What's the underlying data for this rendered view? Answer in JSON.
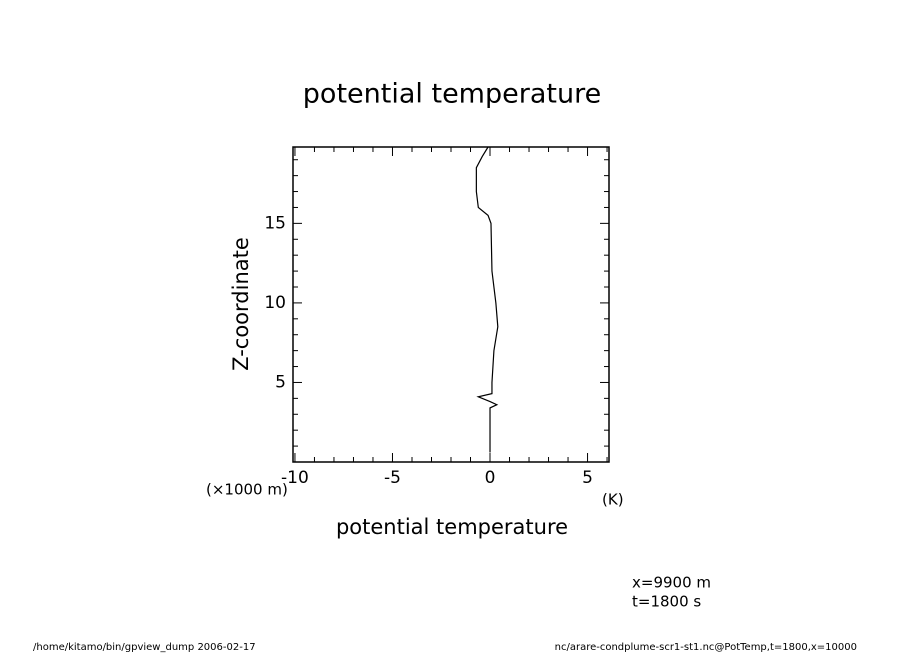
{
  "chart_data": {
    "type": "line",
    "title": "potential temperature",
    "xlabel": "potential temperature",
    "ylabel": "Z-coordinate",
    "yunit": "(×1000 m)",
    "xunit": "(K)",
    "annotations": [
      "x=9900 m",
      "t=1800 s"
    ],
    "footer_left": "/home/kitamo/bin/gpview_dump  2006-02-17",
    "footer_right": "nc/arare-condplume-scr1-st1.nc@PotTemp,t=1800,x=10000",
    "color": "#000000",
    "x": [
      0.0,
      0.0,
      0.35,
      0.0,
      -0.6,
      0.1,
      0.1,
      0.2,
      0.4,
      0.3,
      0.1,
      0.05,
      -0.1,
      -0.6,
      -0.7,
      -0.7,
      -0.4,
      -0.1
    ],
    "values": [
      0.6,
      3.4,
      3.6,
      3.8,
      4.1,
      4.3,
      5,
      7,
      8.5,
      10,
      12,
      15,
      15.5,
      16,
      17,
      18.5,
      19.2,
      19.8
    ],
    "xlim": [
      -10.1,
      6.1
    ],
    "ylim": [
      0,
      19.8
    ],
    "xticks": [
      -10,
      -5,
      0,
      5
    ],
    "yticks": [
      5,
      10,
      15
    ],
    "xminorticks": [
      -9,
      -8,
      -7,
      -6,
      -4,
      -3,
      -2,
      -1,
      1,
      2,
      3,
      4,
      6
    ],
    "yminorticks": [
      1,
      2,
      3,
      4,
      6,
      7,
      8,
      9,
      11,
      12,
      13,
      14,
      16,
      17,
      18,
      19
    ]
  }
}
